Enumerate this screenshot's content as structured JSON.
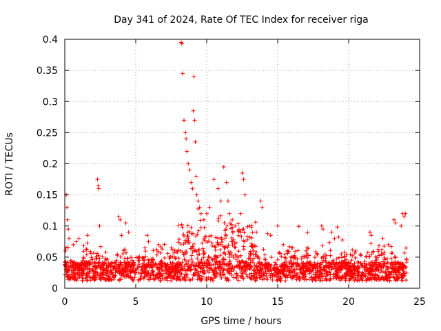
{
  "chart_data": {
    "type": "scatter",
    "title": "Day 341 of 2024, Rate Of TEC Index for receiver riga",
    "xlabel": "GPS time / hours",
    "ylabel": "ROTI / TECUs",
    "xlim": [
      0,
      25
    ],
    "ylim": [
      0,
      0.4
    ],
    "xticks": [
      0,
      5,
      10,
      15,
      20,
      25
    ],
    "xtick_labels": [
      "0",
      "5",
      "10",
      "15",
      "20",
      "25"
    ],
    "yticks": [
      0,
      0.05,
      0.1,
      0.15,
      0.2,
      0.25,
      0.3,
      0.35,
      0.4
    ],
    "ytick_labels": [
      "0",
      "0.05",
      "0.1",
      "0.15",
      "0.2",
      "0.25",
      "0.3",
      "0.35",
      "0.4"
    ],
    "grid": true,
    "marker": "+",
    "color": "#ff0000",
    "series": [
      {
        "name": "ROTI",
        "x": [
          0.05,
          0.1,
          0.15,
          0.2,
          0.25,
          0.3,
          0.6,
          0.8,
          1.0,
          1.6,
          2.3,
          2.35,
          2.4,
          2.45,
          3.8,
          3.9,
          4.0,
          4.3,
          4.5,
          5.8,
          5.9,
          6.6,
          7.5,
          8.2,
          8.25,
          8.3,
          8.4,
          8.5,
          8.55,
          8.6,
          8.7,
          8.8,
          8.9,
          9.0,
          9.05,
          9.1,
          9.15,
          9.2,
          9.25,
          9.3,
          9.4,
          9.5,
          9.6,
          9.8,
          10.0,
          10.2,
          10.5,
          10.8,
          11.0,
          11.2,
          11.4,
          11.5,
          11.6,
          11.8,
          12.0,
          12.4,
          12.5,
          12.6,
          12.7,
          13.0,
          13.5,
          13.8,
          13.9,
          14.5,
          15.0,
          15.4,
          16.0,
          17.0,
          18.1,
          18.2,
          18.8,
          19.0,
          20.5,
          21.5,
          21.6,
          22.4,
          22.8,
          23.2,
          23.3,
          23.7,
          23.8,
          23.9,
          24.0
        ],
        "y": [
          0.06,
          0.15,
          0.13,
          0.11,
          0.095,
          0.08,
          0.07,
          0.075,
          0.08,
          0.085,
          0.175,
          0.165,
          0.16,
          0.1,
          0.115,
          0.11,
          0.085,
          0.105,
          0.09,
          0.085,
          0.075,
          0.07,
          0.065,
          0.395,
          0.393,
          0.345,
          0.27,
          0.25,
          0.24,
          0.22,
          0.2,
          0.19,
          0.17,
          0.16,
          0.285,
          0.34,
          0.27,
          0.235,
          0.18,
          0.15,
          0.14,
          0.13,
          0.12,
          0.11,
          0.12,
          0.13,
          0.175,
          0.16,
          0.14,
          0.195,
          0.17,
          0.14,
          0.12,
          0.11,
          0.1,
          0.12,
          0.185,
          0.175,
          0.15,
          0.1,
          0.09,
          0.14,
          0.13,
          0.085,
          0.1,
          0.07,
          0.065,
          0.06,
          0.1,
          0.095,
          0.09,
          0.08,
          0.06,
          0.09,
          0.085,
          0.08,
          0.07,
          0.11,
          0.105,
          0.1,
          0.12,
          0.115,
          0.12
        ]
      }
    ]
  }
}
